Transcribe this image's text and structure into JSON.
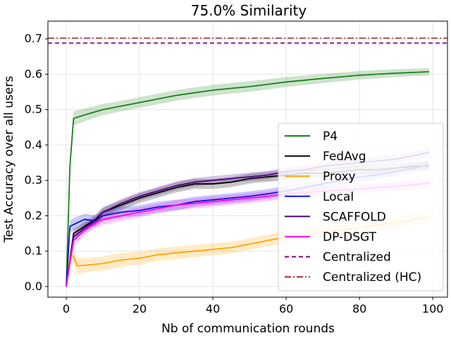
{
  "chart_data": {
    "type": "line",
    "title": "75.0% Similarity",
    "xlabel": "Nb of communication rounds",
    "ylabel": "Test Accuracy over all users",
    "xlim": [
      -5,
      104
    ],
    "ylim": [
      -0.03,
      0.75
    ],
    "xticks": [
      0,
      20,
      40,
      60,
      80,
      100
    ],
    "yticks": [
      0.0,
      0.1,
      0.2,
      0.3,
      0.4,
      0.5,
      0.6,
      0.7
    ],
    "ytick_labels": [
      "0.0",
      "0.1",
      "0.2",
      "0.3",
      "0.4",
      "0.5",
      "0.6",
      "0.7"
    ],
    "grid": true,
    "legend_position": "lower-right",
    "series": [
      {
        "name": "P4",
        "color": "#1a7f1a",
        "style": "solid",
        "x": [
          0,
          1,
          2,
          5,
          10,
          15,
          20,
          30,
          40,
          50,
          60,
          70,
          80,
          90,
          99
        ],
        "y": [
          0.0,
          0.34,
          0.475,
          0.485,
          0.5,
          0.51,
          0.52,
          0.54,
          0.555,
          0.565,
          0.578,
          0.588,
          0.597,
          0.603,
          0.607
        ],
        "band": [
          0.008,
          0.015,
          0.02,
          0.018,
          0.016,
          0.015,
          0.015,
          0.015,
          0.015,
          0.015,
          0.014,
          0.013,
          0.012,
          0.011,
          0.01
        ]
      },
      {
        "name": "FedAvg",
        "color": "#000000",
        "style": "solid",
        "x": [
          0,
          2,
          5,
          8,
          10,
          15,
          20,
          25,
          30,
          35,
          40,
          45,
          50,
          55,
          60,
          65,
          70,
          75,
          80,
          85,
          90,
          95,
          99
        ],
        "y": [
          0.0,
          0.15,
          0.17,
          0.19,
          0.21,
          0.23,
          0.25,
          0.265,
          0.28,
          0.29,
          0.29,
          0.295,
          0.305,
          0.31,
          0.315,
          0.32,
          0.32,
          0.325,
          0.33,
          0.33,
          0.335,
          0.34,
          0.34
        ],
        "band": [
          0.005,
          0.012,
          0.014,
          0.014,
          0.014,
          0.014,
          0.014,
          0.014,
          0.014,
          0.014,
          0.014,
          0.014,
          0.014,
          0.014,
          0.014,
          0.014,
          0.014,
          0.013,
          0.013,
          0.013,
          0.012,
          0.012,
          0.012
        ]
      },
      {
        "name": "Proxy",
        "color": "#ffa500",
        "style": "solid",
        "x": [
          0,
          1,
          2,
          3,
          5,
          10,
          15,
          20,
          25,
          30,
          35,
          40,
          45,
          50,
          55,
          60,
          65,
          70,
          75,
          80,
          85,
          90,
          95,
          99
        ],
        "y": [
          0.0,
          0.09,
          0.085,
          0.058,
          0.06,
          0.065,
          0.075,
          0.08,
          0.09,
          0.095,
          0.1,
          0.105,
          0.11,
          0.12,
          0.13,
          0.14,
          0.145,
          0.155,
          0.16,
          0.165,
          0.175,
          0.18,
          0.19,
          0.195
        ],
        "band": [
          0.003,
          0.015,
          0.02,
          0.022,
          0.02,
          0.02,
          0.02,
          0.018,
          0.018,
          0.018,
          0.017,
          0.017,
          0.017,
          0.016,
          0.016,
          0.016,
          0.016,
          0.016,
          0.016,
          0.016,
          0.015,
          0.015,
          0.015,
          0.015
        ]
      },
      {
        "name": "Local",
        "color": "#0a14dc",
        "style": "solid",
        "x": [
          0,
          1,
          2,
          5,
          8,
          10,
          15,
          20,
          25,
          30,
          35,
          40,
          45,
          50,
          55,
          60,
          65,
          70,
          75,
          80,
          85,
          90,
          95,
          99
        ],
        "y": [
          0.0,
          0.17,
          0.175,
          0.19,
          0.185,
          0.2,
          0.21,
          0.215,
          0.225,
          0.23,
          0.24,
          0.245,
          0.25,
          0.255,
          0.262,
          0.27,
          0.28,
          0.29,
          0.3,
          0.31,
          0.315,
          0.325,
          0.335,
          0.345
        ],
        "band": [
          0.005,
          0.015,
          0.018,
          0.016,
          0.016,
          0.016,
          0.015,
          0.015,
          0.015,
          0.015,
          0.014,
          0.014,
          0.014,
          0.014,
          0.014,
          0.014,
          0.014,
          0.014,
          0.013,
          0.013,
          0.013,
          0.012,
          0.012,
          0.012
        ]
      },
      {
        "name": "SCAFFOLD",
        "color": "#4b0082",
        "style": "solid",
        "x": [
          0,
          2,
          5,
          8,
          10,
          15,
          20,
          25,
          30,
          35,
          40,
          45,
          50,
          55,
          60,
          65,
          70,
          75,
          80,
          85,
          90,
          95,
          99
        ],
        "y": [
          0.0,
          0.14,
          0.165,
          0.185,
          0.21,
          0.235,
          0.255,
          0.27,
          0.285,
          0.295,
          0.3,
          0.305,
          0.31,
          0.315,
          0.325,
          0.33,
          0.34,
          0.345,
          0.35,
          0.355,
          0.36,
          0.37,
          0.38
        ],
        "band": [
          0.005,
          0.012,
          0.012,
          0.012,
          0.012,
          0.012,
          0.012,
          0.012,
          0.012,
          0.012,
          0.012,
          0.012,
          0.012,
          0.012,
          0.012,
          0.012,
          0.012,
          0.012,
          0.012,
          0.012,
          0.012,
          0.012,
          0.012
        ]
      },
      {
        "name": "DP-DSGT",
        "color": "#ff00ff",
        "style": "solid",
        "x": [
          0,
          2,
          5,
          8,
          10,
          15,
          20,
          25,
          30,
          35,
          40,
          45,
          50,
          55,
          60,
          65,
          70,
          75,
          80,
          85,
          90,
          95,
          99
        ],
        "y": [
          0.0,
          0.13,
          0.16,
          0.18,
          0.19,
          0.2,
          0.21,
          0.22,
          0.23,
          0.235,
          0.24,
          0.245,
          0.25,
          0.255,
          0.262,
          0.265,
          0.27,
          0.272,
          0.275,
          0.28,
          0.283,
          0.288,
          0.292
        ],
        "band": [
          0.005,
          0.015,
          0.015,
          0.015,
          0.015,
          0.014,
          0.014,
          0.014,
          0.014,
          0.014,
          0.014,
          0.014,
          0.014,
          0.014,
          0.014,
          0.014,
          0.013,
          0.013,
          0.013,
          0.013,
          0.012,
          0.012,
          0.012
        ]
      }
    ],
    "hlines": [
      {
        "name": "Centralized",
        "value": 0.688,
        "color": "#800080",
        "style": "dashed"
      },
      {
        "name": "Centralized (HC)",
        "value": 0.702,
        "color": "#a52a2a",
        "style": "dashdot"
      }
    ],
    "legend": [
      "P4",
      "FedAvg",
      "Proxy",
      "Local",
      "SCAFFOLD",
      "DP-DSGT",
      "Centralized",
      "Centralized (HC)"
    ]
  }
}
